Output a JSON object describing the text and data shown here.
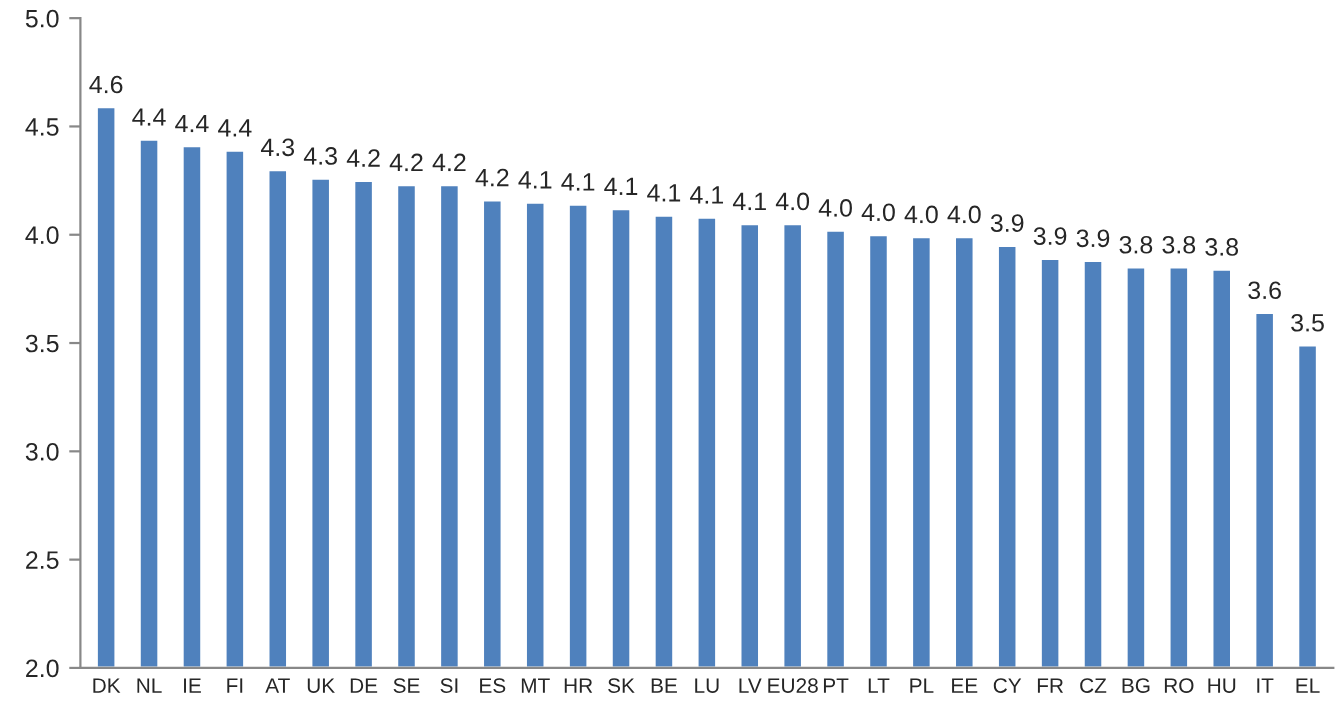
{
  "chart_data": {
    "type": "bar",
    "categories": [
      "DK",
      "NL",
      "IE",
      "FI",
      "AT",
      "UK",
      "DE",
      "SE",
      "SI",
      "ES",
      "MT",
      "HR",
      "SK",
      "BE",
      "LU",
      "LV",
      "EU28",
      "PT",
      "LT",
      "PL",
      "EE",
      "CY",
      "FR",
      "CZ",
      "BG",
      "RO",
      "HU",
      "IT",
      "EL"
    ],
    "values": [
      4.59,
      4.44,
      4.41,
      4.39,
      4.3,
      4.26,
      4.25,
      4.23,
      4.23,
      4.16,
      4.15,
      4.14,
      4.12,
      4.09,
      4.08,
      4.05,
      4.05,
      4.02,
      4.0,
      3.99,
      3.99,
      3.95,
      3.89,
      3.88,
      3.85,
      3.85,
      3.84,
      3.64,
      3.49
    ],
    "value_labels": [
      "4.6",
      "4.4",
      "4.4",
      "4.4",
      "4.3",
      "4.3",
      "4.2",
      "4.2",
      "4.2",
      "4.2",
      "4.1",
      "4.1",
      "4.1",
      "4.1",
      "4.1",
      "4.1",
      "4.0",
      "4.0",
      "4.0",
      "4.0",
      "4.0",
      "3.9",
      "3.9",
      "3.9",
      "3.8",
      "3.8",
      "3.8",
      "3.6",
      "3.5"
    ],
    "color": "#4f81bd",
    "ylim": [
      2.0,
      5.0
    ],
    "yticks": [
      {
        "value": 2.0,
        "label": "2.0"
      },
      {
        "value": 2.5,
        "label": "2.5"
      },
      {
        "value": 3.0,
        "label": "3.0"
      },
      {
        "value": 3.5,
        "label": "3.5"
      },
      {
        "value": 4.0,
        "label": "4.0"
      },
      {
        "value": 4.5,
        "label": "4.5"
      },
      {
        "value": 5.0,
        "label": "5.0"
      }
    ],
    "grid": false,
    "legend": false
  }
}
